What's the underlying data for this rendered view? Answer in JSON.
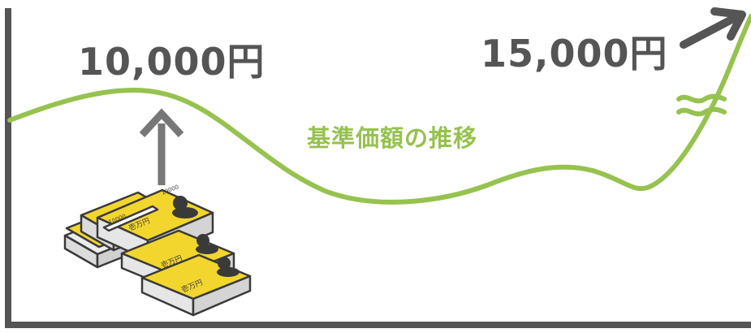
{
  "labels": {
    "start_amount": "10,000円",
    "end_amount": "15,000円",
    "curve_caption": "基準価額の推移"
  },
  "banknote_band_text": "壱万円",
  "banknote_corner_text": "10000",
  "colors": {
    "curve": "#96c24f",
    "axis": "#555555",
    "amount_text": "#555555",
    "arrow": "#555555",
    "note_yellow": "#f2d62e",
    "note_outline": "#3a3a3a"
  }
}
